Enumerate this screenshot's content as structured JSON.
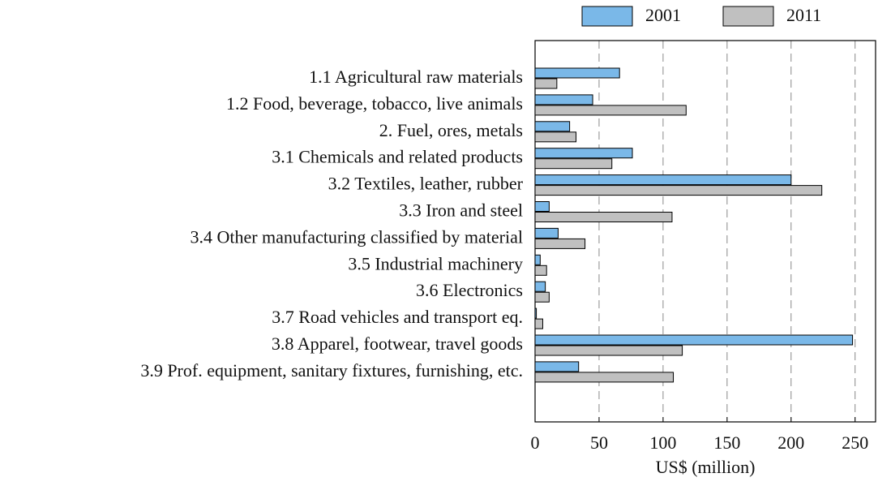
{
  "chart_data": {
    "type": "hbar",
    "x_label": "US$ (million)",
    "categories": [
      "1.1 Agricultural raw materials",
      "1.2 Food, beverage, tobacco, live animals",
      "2. Fuel, ores, metals",
      "3.1 Chemicals and related products",
      "3.2 Textiles, leather, rubber",
      "3.3 Iron and steel",
      "3.4 Other manufacturing classified by material",
      "3.5 Industrial machinery",
      "3.6 Electronics",
      "3.7 Road vehicles and transport eq.",
      "3.8 Apparel, footwear, travel goods",
      "3.9 Prof. equipment, sanitary fixtures, furnishing, etc."
    ],
    "series": [
      {
        "name": "2001",
        "color": "#7ab8e8",
        "values": [
          66,
          45,
          27,
          76,
          200,
          11,
          18,
          4,
          8,
          1,
          248,
          34
        ]
      },
      {
        "name": "2011",
        "color": "#c0c0c0",
        "values": [
          17,
          118,
          32,
          60,
          224,
          107,
          39,
          9,
          11,
          6,
          115,
          108
        ]
      }
    ],
    "xlim": [
      0,
      266
    ],
    "xticks": [
      0,
      50,
      100,
      150,
      200,
      250
    ],
    "grid": true,
    "legend": "top"
  }
}
